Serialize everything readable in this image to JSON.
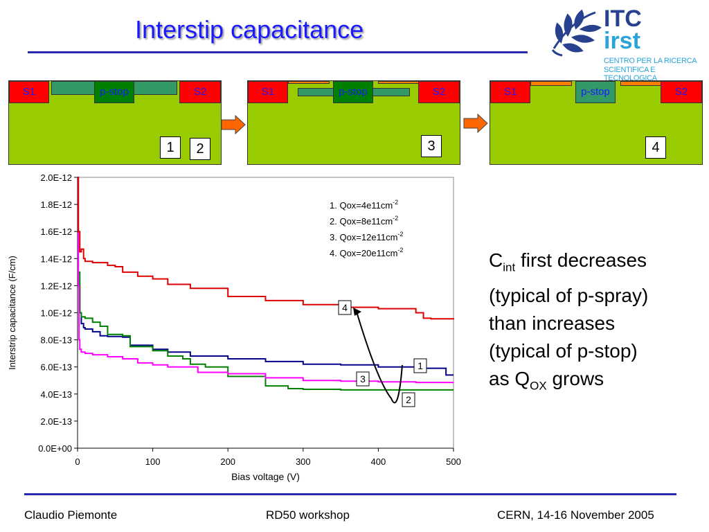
{
  "header": {
    "title": "Interstip capacitance"
  },
  "logo": {
    "line1": "ITC",
    "line2": "irst",
    "sub1": "CENTRO PER LA RICERCA",
    "sub2": "SCIENTIFICA E TECNOLOGICA"
  },
  "diagrams": [
    {
      "s1": "S1",
      "pstop": "p-stop",
      "s2": "S2",
      "labels": [
        "1",
        "2"
      ]
    },
    {
      "s1": "S1",
      "pstop": "p-stop",
      "s2": "S2",
      "labels": [
        "3"
      ]
    },
    {
      "s1": "S1",
      "pstop": "p-stop",
      "s2": "S2",
      "labels": [
        "4"
      ]
    }
  ],
  "colors": {
    "title": "#1a1aff",
    "rule": "#2a2ab0",
    "substrate": "#99cc00",
    "strip": "#ff0000",
    "pstop": "#008000",
    "oxide": "#339966",
    "metal": "#ff8000"
  },
  "chart_data": {
    "type": "line",
    "xlabel": "Bias voltage (V)",
    "ylabel": "Interstrip capacitance (F/cm)",
    "xlim": [
      0,
      500
    ],
    "ylim": [
      0,
      2e-12
    ],
    "xticks": [
      "0",
      "100",
      "200",
      "300",
      "400",
      "500"
    ],
    "yticks": [
      "0.0E+00",
      "2.0E-13",
      "4.0E-13",
      "6.0E-13",
      "8.0E-13",
      "1.0E-12",
      "1.2E-12",
      "1.4E-12",
      "1.6E-12",
      "1.8E-12",
      "2.0E-12"
    ],
    "grid": false,
    "legend_position": "top-right",
    "legend": [
      {
        "text": "1. Qox=4e11cm",
        "sup": "-2"
      },
      {
        "text": "2. Qox=8e11cm",
        "sup": "-2"
      },
      {
        "text": "3. Qox=12e11cm",
        "sup": "-2"
      },
      {
        "text": "4. Qox=20e11cm",
        "sup": "-2"
      }
    ],
    "series": [
      {
        "color": "#00008b",
        "label": "1",
        "x": [
          0,
          1,
          3,
          5,
          8,
          10,
          20,
          30,
          40,
          60,
          70,
          100,
          120,
          150,
          200,
          250,
          300,
          350,
          400,
          450,
          480,
          490,
          500
        ],
        "y": [
          2e-12,
          1.2e-12,
          1e-12,
          9.2e-13,
          8.9e-13,
          8.8e-13,
          8.6e-13,
          8.3e-13,
          8.25e-13,
          8.2e-13,
          7.6e-13,
          7.3e-13,
          7.1e-13,
          6.8e-13,
          6.6e-13,
          6.4e-13,
          6.2e-13,
          6.15e-13,
          6e-13,
          5.9e-13,
          5.9e-13,
          5.4e-13,
          5.4e-13
        ]
      },
      {
        "color": "#008000",
        "label": "2",
        "x": [
          0,
          1,
          3,
          5,
          10,
          20,
          30,
          40,
          60,
          70,
          100,
          120,
          140,
          150,
          170,
          200,
          250,
          280,
          300,
          350,
          400,
          450,
          500
        ],
        "y": [
          2e-12,
          1.3e-12,
          1e-12,
          9.7e-13,
          9.6e-13,
          9.3e-13,
          9e-13,
          8.4e-13,
          8.3e-13,
          7.5e-13,
          7.2e-13,
          6.8e-13,
          6.6e-13,
          6.2e-13,
          6e-13,
          5.3e-13,
          4.6e-13,
          4.4e-13,
          4.35e-13,
          4.3e-13,
          4.3e-13,
          4.3e-13,
          4.3e-13
        ]
      },
      {
        "color": "#ff00ff",
        "label": "3",
        "x": [
          0,
          1,
          2,
          3,
          5,
          10,
          20,
          40,
          60,
          80,
          100,
          120,
          150,
          160,
          200,
          250,
          300,
          350,
          400,
          450,
          500
        ],
        "y": [
          2e-12,
          1.2e-12,
          8e-13,
          7.3e-13,
          7.1e-13,
          7e-13,
          6.9e-13,
          6.75e-13,
          6.6e-13,
          6.3e-13,
          6.15e-13,
          6e-13,
          6e-13,
          5.6e-13,
          5.5e-13,
          5.2e-13,
          5e-13,
          4.95e-13,
          4.9e-13,
          4.85e-13,
          4.85e-13
        ]
      },
      {
        "color": "#dd0000",
        "label": "4",
        "x": [
          0,
          1,
          3,
          5,
          8,
          10,
          20,
          40,
          50,
          60,
          80,
          100,
          120,
          150,
          200,
          250,
          300,
          350,
          400,
          450,
          460,
          470,
          500
        ],
        "y": [
          2e-12,
          1.6e-12,
          1.45e-12,
          1.47e-12,
          1.4e-12,
          1.38e-12,
          1.37e-12,
          1.35e-12,
          1.34e-12,
          1.3e-12,
          1.27e-12,
          1.25e-12,
          1.21e-12,
          1.18e-12,
          1.12e-12,
          1.09e-12,
          1.06e-12,
          1.04e-12,
          1.03e-12,
          1e-12,
          9.6e-13,
          9.55e-13,
          9.5e-13
        ]
      }
    ],
    "callouts": [
      "1",
      "2",
      "3",
      "4"
    ]
  },
  "description": {
    "c": "C",
    "c_sub": "int",
    "line1_rest": " first decreases",
    "line2": "(typical of p-spray)",
    "line3": "than increases",
    "line4": "(typical of p-stop)",
    "as": "as Q",
    "q_sub": "OX",
    "grows": " grows"
  },
  "footer": {
    "author": "Claudio Piemonte",
    "event": "RD50 workshop",
    "place_date": "CERN, 14-16 November 2005"
  }
}
